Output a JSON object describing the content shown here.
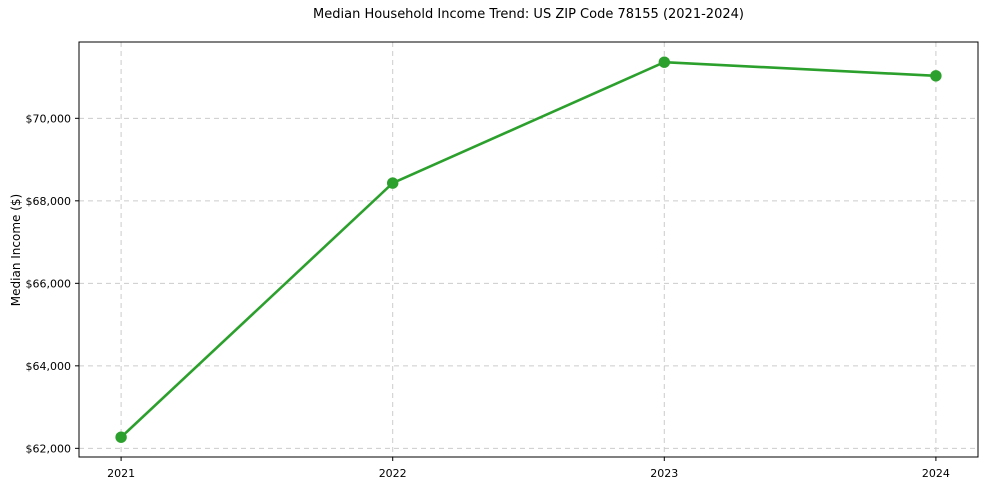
{
  "figure": {
    "title": "Median Household Income Trend: US ZIP Code 78155 (2021-2024)",
    "ylabel": "Median Income ($)"
  },
  "chart_data": {
    "type": "line",
    "title": "Median Household Income Trend: US ZIP Code 78155 (2021-2024)",
    "xlabel": "",
    "ylabel": "Median Income ($)",
    "x": [
      2021,
      2022,
      2023,
      2024
    ],
    "values": [
      62270,
      68430,
      71360,
      71030
    ],
    "series_name": "Median Household Income",
    "xtick_labels": [
      "2021",
      "2022",
      "2023",
      "2024"
    ],
    "yticks": [
      62000,
      64000,
      66000,
      68000,
      70000
    ],
    "ytick_labels": [
      "$62,000",
      "$64,000",
      "$66,000",
      "$68,000",
      "$70,000"
    ],
    "xlim": [
      2020.845,
      2024.155
    ],
    "ylim": [
      61790,
      71850
    ],
    "grid": true,
    "grid_style": "dashed",
    "legend": false,
    "line_color": "#2ca02c",
    "marker": "o",
    "marker_color": "#2ca02c",
    "grid_color": "#cccccc",
    "frame_color": "#000000",
    "background": "#ffffff"
  }
}
